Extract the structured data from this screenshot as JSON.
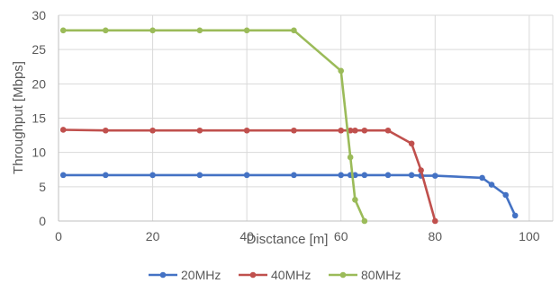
{
  "chart_data": {
    "type": "line",
    "xlabel": "Disctance [m]",
    "ylabel": "Throughput [Mbps]",
    "xlim": [
      0,
      105
    ],
    "ylim": [
      0,
      30
    ],
    "x_ticks": [
      0,
      20,
      40,
      60,
      80,
      100
    ],
    "y_ticks": [
      0,
      5,
      10,
      15,
      20,
      25,
      30
    ],
    "grid": true,
    "legend_position": "bottom",
    "series": [
      {
        "name": "20MHz",
        "color": "#4472c4",
        "points": [
          [
            1,
            6.7
          ],
          [
            10,
            6.7
          ],
          [
            20,
            6.7
          ],
          [
            30,
            6.7
          ],
          [
            40,
            6.7
          ],
          [
            50,
            6.7
          ],
          [
            60,
            6.7
          ],
          [
            62,
            6.7
          ],
          [
            63,
            6.7
          ],
          [
            65,
            6.7
          ],
          [
            70,
            6.7
          ],
          [
            75,
            6.7
          ],
          [
            77,
            6.6
          ],
          [
            80,
            6.6
          ],
          [
            90,
            6.3
          ],
          [
            92,
            5.3
          ],
          [
            95,
            3.8
          ],
          [
            97,
            0.8
          ]
        ]
      },
      {
        "name": "40MHz",
        "color": "#c0504d",
        "points": [
          [
            1,
            13.3
          ],
          [
            10,
            13.2
          ],
          [
            20,
            13.2
          ],
          [
            30,
            13.2
          ],
          [
            40,
            13.2
          ],
          [
            50,
            13.2
          ],
          [
            60,
            13.2
          ],
          [
            62,
            13.2
          ],
          [
            63,
            13.2
          ],
          [
            65,
            13.2
          ],
          [
            70,
            13.2
          ],
          [
            75,
            11.3
          ],
          [
            77,
            7.4
          ],
          [
            80,
            0
          ]
        ]
      },
      {
        "name": "80MHz",
        "color": "#9bbb59",
        "points": [
          [
            1,
            27.8
          ],
          [
            10,
            27.8
          ],
          [
            20,
            27.8
          ],
          [
            30,
            27.8
          ],
          [
            40,
            27.8
          ],
          [
            50,
            27.8
          ],
          [
            60,
            21.9
          ],
          [
            62,
            9.3
          ],
          [
            63,
            3.1
          ],
          [
            65,
            0
          ]
        ]
      }
    ]
  }
}
